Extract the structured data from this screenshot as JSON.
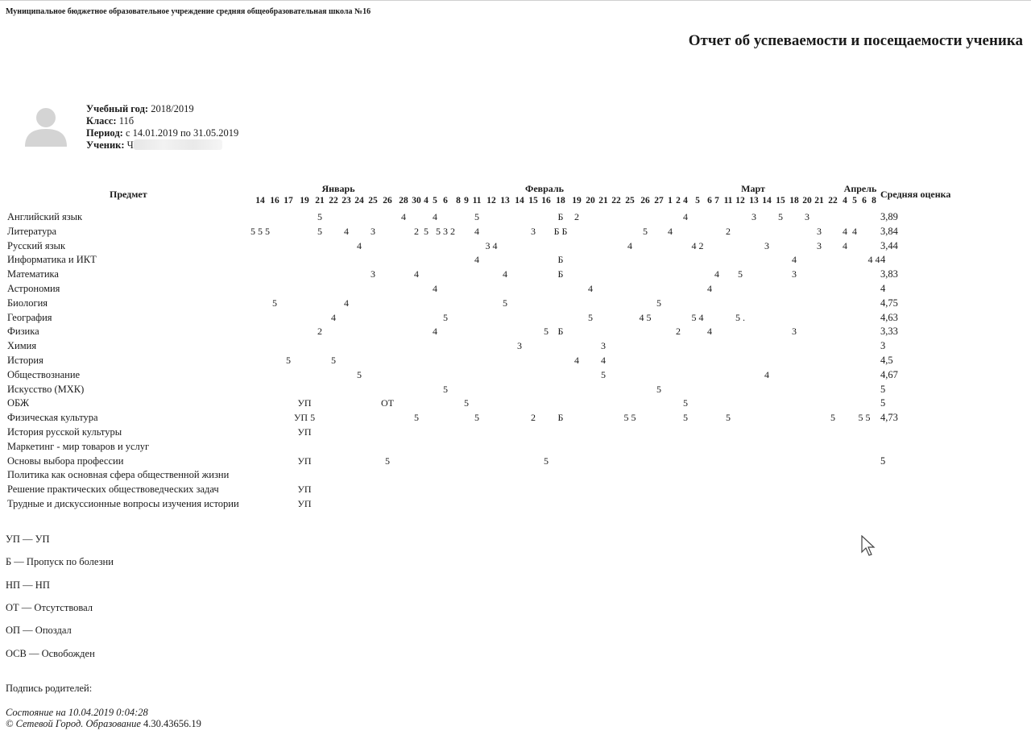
{
  "header": {
    "school": "Муниципальное бюджетное образовательное учреждение средняя общеобразовательная школа №16",
    "title": "Отчет об успеваемости и посещаемости ученика"
  },
  "student_info": {
    "year_label": "Учебный год:",
    "year": "2018/2019",
    "class_label": "Класс:",
    "class": "11б",
    "period_label": "Период:",
    "period": "с 14.01.2019 по 31.05.2019",
    "student_label": "Ученик:",
    "student": "Ч"
  },
  "table": {
    "subject_header": "Предмет",
    "average_header": "Средняя оценка",
    "months": [
      "Январь",
      "Февраль",
      "Март",
      "Апрель"
    ],
    "days": [
      "14",
      "16",
      "17",
      "19",
      "21",
      "22",
      "23",
      "24",
      "25",
      "26",
      "28",
      "30",
      "4",
      "5",
      "6",
      "8",
      "9",
      "11",
      "12",
      "13",
      "14",
      "15",
      "16",
      "18",
      "19",
      "20",
      "21",
      "22",
      "25",
      "26",
      "27",
      "1",
      "2",
      "4",
      "5",
      "6",
      "7",
      "11",
      "12",
      "13",
      "14",
      "15",
      "18",
      "20",
      "21",
      "22",
      "4",
      "5",
      "6",
      "8"
    ],
    "rows": [
      {
        "subject": "Английский язык",
        "average": "3,89",
        "marks": [
          [
            "5",
            4
          ],
          [
            "4",
            10
          ],
          [
            "4",
            13
          ],
          [
            "5",
            17
          ],
          [
            "Б",
            23
          ],
          [
            "2",
            24
          ],
          [
            "4",
            33
          ],
          [
            "3",
            39
          ],
          [
            "5",
            41
          ],
          [
            "3",
            43
          ]
        ]
      },
      {
        "subject": "Литература",
        "average": "3,84",
        "marks": [
          [
            "5 5 5",
            0
          ],
          [
            "5",
            4
          ],
          [
            "4",
            6
          ],
          [
            "3",
            8
          ],
          [
            "2",
            11
          ],
          [
            "5",
            12
          ],
          [
            "5 3 2",
            14
          ],
          [
            "4",
            17
          ],
          [
            "3",
            21
          ],
          [
            "Б Б",
            23
          ],
          [
            "5",
            29
          ],
          [
            "4",
            31
          ],
          [
            "2",
            37
          ],
          [
            "3",
            44
          ],
          [
            "4",
            46
          ],
          [
            "4",
            47
          ]
        ]
      },
      {
        "subject": "Русский язык",
        "average": "3,44",
        "marks": [
          [
            "4",
            7
          ],
          [
            "3 4",
            18
          ],
          [
            "4",
            28
          ],
          [
            "4 2",
            34
          ],
          [
            "3",
            40
          ],
          [
            "3",
            44
          ],
          [
            "4",
            46
          ]
        ]
      },
      {
        "subject": "Информатика и ИКТ",
        "average": "4",
        "marks": [
          [
            "4",
            17
          ],
          [
            "Б",
            23
          ],
          [
            "4",
            42
          ],
          [
            "4 4",
            49
          ]
        ]
      },
      {
        "subject": "Математика",
        "average": "3,83",
        "marks": [
          [
            "3",
            8
          ],
          [
            "4",
            11
          ],
          [
            "4",
            19
          ],
          [
            "Б",
            23
          ],
          [
            "4",
            36
          ],
          [
            "5",
            38
          ],
          [
            "3",
            42
          ]
        ]
      },
      {
        "subject": "Астрономия",
        "average": "4",
        "marks": [
          [
            "4",
            13
          ],
          [
            "4",
            25
          ],
          [
            "4",
            35
          ]
        ]
      },
      {
        "subject": "Биология",
        "average": "4,75",
        "marks": [
          [
            "5",
            1
          ],
          [
            "4",
            6
          ],
          [
            "5",
            19
          ],
          [
            "5",
            30
          ]
        ]
      },
      {
        "subject": "География",
        "average": "4,63",
        "marks": [
          [
            "4",
            5
          ],
          [
            "5",
            14
          ],
          [
            "5",
            25
          ],
          [
            "4 5",
            29
          ],
          [
            "5 4",
            34
          ],
          [
            "5 .",
            38
          ]
        ]
      },
      {
        "subject": "Физика",
        "average": "3,33",
        "marks": [
          [
            "2",
            4
          ],
          [
            "4",
            13
          ],
          [
            "5",
            22
          ],
          [
            "Б",
            23
          ],
          [
            "2",
            32
          ],
          [
            "4",
            35
          ],
          [
            "3",
            42
          ]
        ]
      },
      {
        "subject": "Химия",
        "average": "3",
        "marks": [
          [
            "3",
            20
          ],
          [
            "3",
            26
          ]
        ]
      },
      {
        "subject": "История",
        "average": "4,5",
        "marks": [
          [
            "5",
            2
          ],
          [
            "5",
            5
          ],
          [
            "4",
            24
          ],
          [
            "4",
            26
          ]
        ]
      },
      {
        "subject": "Обществознание",
        "average": "4,67",
        "marks": [
          [
            "5",
            7
          ],
          [
            "5",
            26
          ],
          [
            "4",
            40
          ]
        ]
      },
      {
        "subject": "Искусство (МХК)",
        "average": "5",
        "marks": [
          [
            "5",
            14
          ],
          [
            "5",
            30
          ]
        ]
      },
      {
        "subject": "ОБЖ",
        "average": "5",
        "marks": [
          [
            "УП",
            3
          ],
          [
            "ОТ",
            9
          ],
          [
            "5",
            16
          ],
          [
            "5",
            33
          ]
        ]
      },
      {
        "subject": "Физическая культура",
        "average": "4,73",
        "marks": [
          [
            "УП 5",
            3
          ],
          [
            "5",
            11
          ],
          [
            "5",
            17
          ],
          [
            "2",
            21
          ],
          [
            "Б",
            23
          ],
          [
            "5 5",
            28
          ],
          [
            "5",
            33
          ],
          [
            "5",
            37
          ],
          [
            "5",
            45
          ],
          [
            "5 5",
            48
          ]
        ]
      },
      {
        "subject": "История русской культуры",
        "average": "",
        "marks": [
          [
            "УП",
            3
          ]
        ]
      },
      {
        "subject": "Маркетинг - мир товаров и услуг",
        "average": "",
        "marks": []
      },
      {
        "subject": "Основы выбора профессии",
        "average": "5",
        "marks": [
          [
            "УП",
            3
          ],
          [
            "5",
            9
          ],
          [
            "5",
            22
          ]
        ]
      },
      {
        "subject": "Политика как основная сфера общественной жизни",
        "average": "",
        "marks": []
      },
      {
        "subject": "Решение практических обществоведческих задач",
        "average": "",
        "marks": [
          [
            "УП",
            3
          ]
        ]
      },
      {
        "subject": "Трудные и дискуссионные вопросы изучения истории",
        "average": "",
        "marks": [
          [
            "УП",
            3
          ]
        ]
      }
    ]
  },
  "legend": [
    "УП — УП",
    "Б — Пропуск по болезни",
    "НП — НП",
    "ОТ — Отсутствовал",
    "ОП — Опоздал",
    "ОСВ — Освобожден"
  ],
  "signature": "Подпись родителей:",
  "footer": {
    "status": "Состояние на 10.04.2019 0:04:28",
    "copyright": "© Сетевой Город. Образование",
    "version": "4.30.43656.19"
  }
}
